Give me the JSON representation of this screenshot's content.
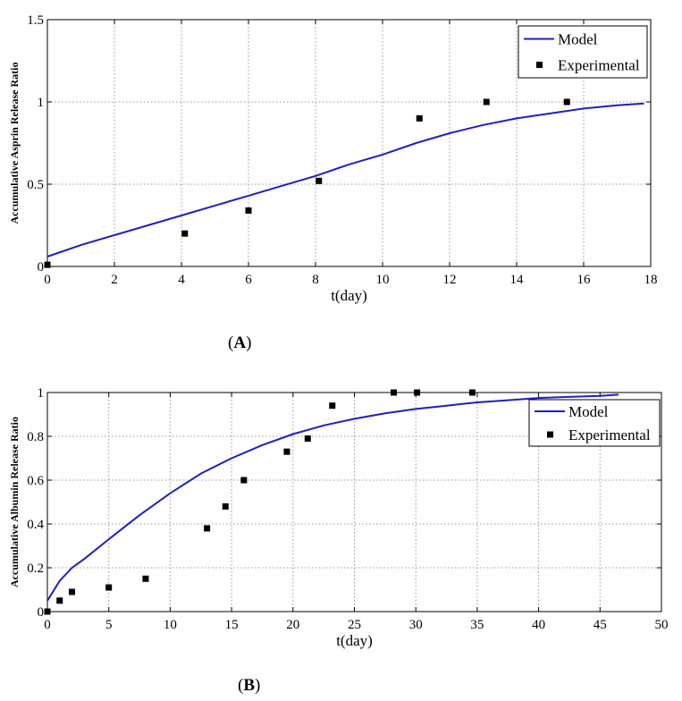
{
  "chart_data": [
    {
      "type": "line",
      "panel_label": "A",
      "xlabel": "t(day)",
      "ylabel": "Accumulative Asprin Release Ratio",
      "xlim": [
        0,
        18
      ],
      "ylim": [
        0,
        1.5
      ],
      "x_ticks": [
        0,
        2,
        4,
        6,
        8,
        10,
        12,
        14,
        16,
        18
      ],
      "y_ticks": [
        0,
        0.5,
        1,
        1.5
      ],
      "x_tick_labels": [
        "0",
        "2",
        "4",
        "6",
        "8",
        "10",
        "12",
        "14",
        "16",
        "18"
      ],
      "y_tick_labels": [
        "0",
        "0.5",
        "1",
        "1.5"
      ],
      "grid": true,
      "legend_position": "top-right",
      "series": [
        {
          "name": "Model",
          "style": "line",
          "color": "#1f1fbf",
          "x": [
            0,
            1,
            2,
            3,
            4,
            5,
            6,
            7,
            8,
            9,
            10,
            11,
            12,
            13,
            14,
            15,
            16,
            17,
            17.8
          ],
          "y": [
            0.06,
            0.13,
            0.19,
            0.25,
            0.31,
            0.37,
            0.43,
            0.49,
            0.55,
            0.62,
            0.68,
            0.75,
            0.81,
            0.86,
            0.9,
            0.93,
            0.96,
            0.98,
            0.99
          ]
        },
        {
          "name": "Experimental",
          "style": "marker",
          "color": "#000000",
          "x": [
            0,
            4.1,
            6,
            8.1,
            11.1,
            13.1,
            15.5
          ],
          "y": [
            0.01,
            0.2,
            0.34,
            0.52,
            0.9,
            1.0,
            1.0
          ]
        }
      ]
    },
    {
      "type": "line",
      "panel_label": "B",
      "xlabel": "t(day)",
      "ylabel": "Accumulative Albumin Release Ratio",
      "xlim": [
        0,
        50
      ],
      "ylim": [
        0,
        1
      ],
      "x_ticks": [
        0,
        5,
        10,
        15,
        20,
        25,
        30,
        35,
        40,
        45,
        50
      ],
      "y_ticks": [
        0,
        0.2,
        0.4,
        0.6,
        0.8,
        1
      ],
      "x_tick_labels": [
        "0",
        "5",
        "10",
        "15",
        "20",
        "25",
        "30",
        "35",
        "40",
        "45",
        "50"
      ],
      "y_tick_labels": [
        "0",
        "0.2",
        "0.4",
        "0.6",
        "0.8",
        "1"
      ],
      "grid": true,
      "legend_position": "top-right",
      "series": [
        {
          "name": "Model",
          "style": "line",
          "color": "#1f1fbf",
          "x": [
            0,
            1,
            2,
            3,
            5,
            7.5,
            10,
            12.5,
            15,
            17.5,
            20,
            22.5,
            25,
            27.5,
            30,
            32.5,
            35,
            37.5,
            40,
            42.5,
            45,
            46.5
          ],
          "y": [
            0.05,
            0.14,
            0.2,
            0.24,
            0.33,
            0.44,
            0.54,
            0.63,
            0.7,
            0.76,
            0.81,
            0.85,
            0.88,
            0.905,
            0.925,
            0.94,
            0.955,
            0.965,
            0.975,
            0.98,
            0.985,
            0.99
          ]
        },
        {
          "name": "Experimental",
          "style": "marker",
          "color": "#000000",
          "x": [
            0,
            1,
            2,
            5,
            8,
            13,
            14.5,
            16,
            19.5,
            21.2,
            23.2,
            28.2,
            30.1,
            34.6
          ],
          "y": [
            0.0,
            0.05,
            0.09,
            0.11,
            0.15,
            0.38,
            0.48,
            0.6,
            0.73,
            0.79,
            0.94,
            1.0,
            1.0,
            1.0
          ]
        }
      ]
    }
  ]
}
